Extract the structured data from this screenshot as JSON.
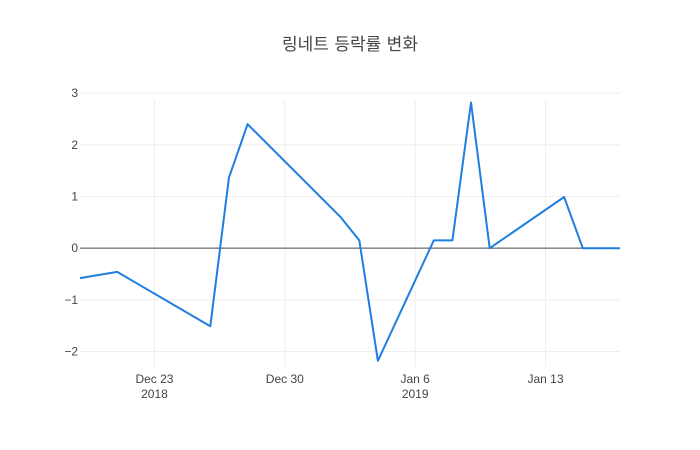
{
  "chart_data": {
    "type": "line",
    "title": "링네트 등락률 변화",
    "xlabel": "",
    "ylabel": "",
    "xlim": [
      "2018-12-19",
      "2019-01-17"
    ],
    "ylim": [
      -2.3,
      3.1
    ],
    "grid": true,
    "legend": "none",
    "x_ticks": [
      {
        "date": "2018-12-23",
        "label": "Dec 23",
        "sublabel": "2018"
      },
      {
        "date": "2018-12-30",
        "label": "Dec 30",
        "sublabel": ""
      },
      {
        "date": "2019-01-06",
        "label": "Jan 6",
        "sublabel": "2019"
      },
      {
        "date": "2019-01-13",
        "label": "Jan 13",
        "sublabel": ""
      }
    ],
    "y_ticks": [
      {
        "value": 3,
        "label": "3"
      },
      {
        "value": 2,
        "label": "2"
      },
      {
        "value": 1,
        "label": "1"
      },
      {
        "value": 0,
        "label": "0"
      },
      {
        "value": -1,
        "label": "−1"
      },
      {
        "value": -2,
        "label": "−2"
      }
    ],
    "series": [
      {
        "color": "#1f7ee0",
        "x": [
          "2018-12-19",
          "2018-12-21",
          "2018-12-26",
          "2018-12-27",
          "2018-12-28",
          "2019-01-02",
          "2019-01-03",
          "2019-01-04",
          "2019-01-07",
          "2019-01-08",
          "2019-01-09",
          "2019-01-10",
          "2019-01-14",
          "2019-01-15",
          "2019-01-17"
        ],
        "y": [
          -0.58,
          -0.46,
          -1.51,
          1.37,
          2.4,
          0.6,
          0.15,
          -2.18,
          0.15,
          0.15,
          2.82,
          0.0,
          0.99,
          0.0,
          0.0
        ]
      }
    ]
  }
}
